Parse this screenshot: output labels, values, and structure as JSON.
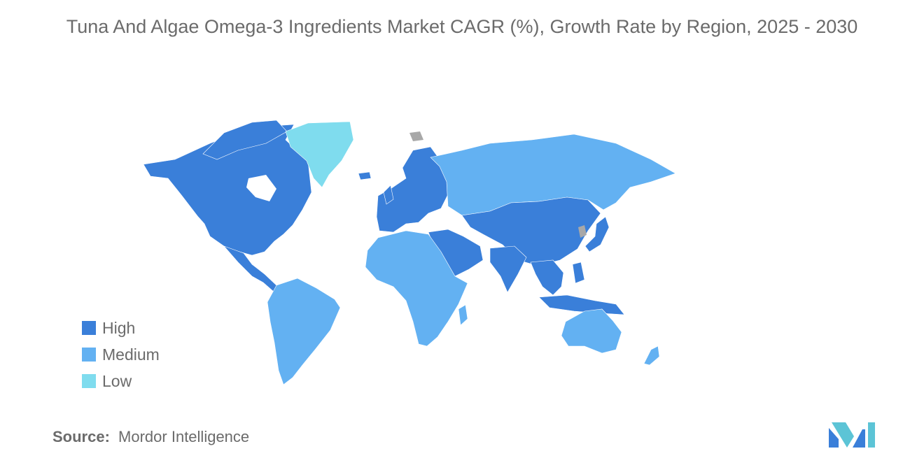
{
  "title": "Tuna And Algae Omega-3 Ingredients Market CAGR (%), Growth Rate by Region, 2025 - 2030",
  "legend": [
    {
      "label": "High",
      "color": "#3a7fd9"
    },
    {
      "label": "Medium",
      "color": "#63b1f2"
    },
    {
      "label": "Low",
      "color": "#7fdcee"
    }
  ],
  "no_data_color": "#a8a8a8",
  "regions": {
    "north_america": "High",
    "greenland": "Low",
    "central_america": "High",
    "south_america": "Medium",
    "europe": "High",
    "russia": "Medium",
    "middle_east": "High",
    "central_asia": "High",
    "china": "High",
    "india": "High",
    "southeast_asia": "High",
    "japan": "High",
    "africa": "Medium",
    "australia": "Medium",
    "new_zealand": "Medium"
  },
  "source": {
    "label": "Source:",
    "value": "Mordor Intelligence"
  }
}
